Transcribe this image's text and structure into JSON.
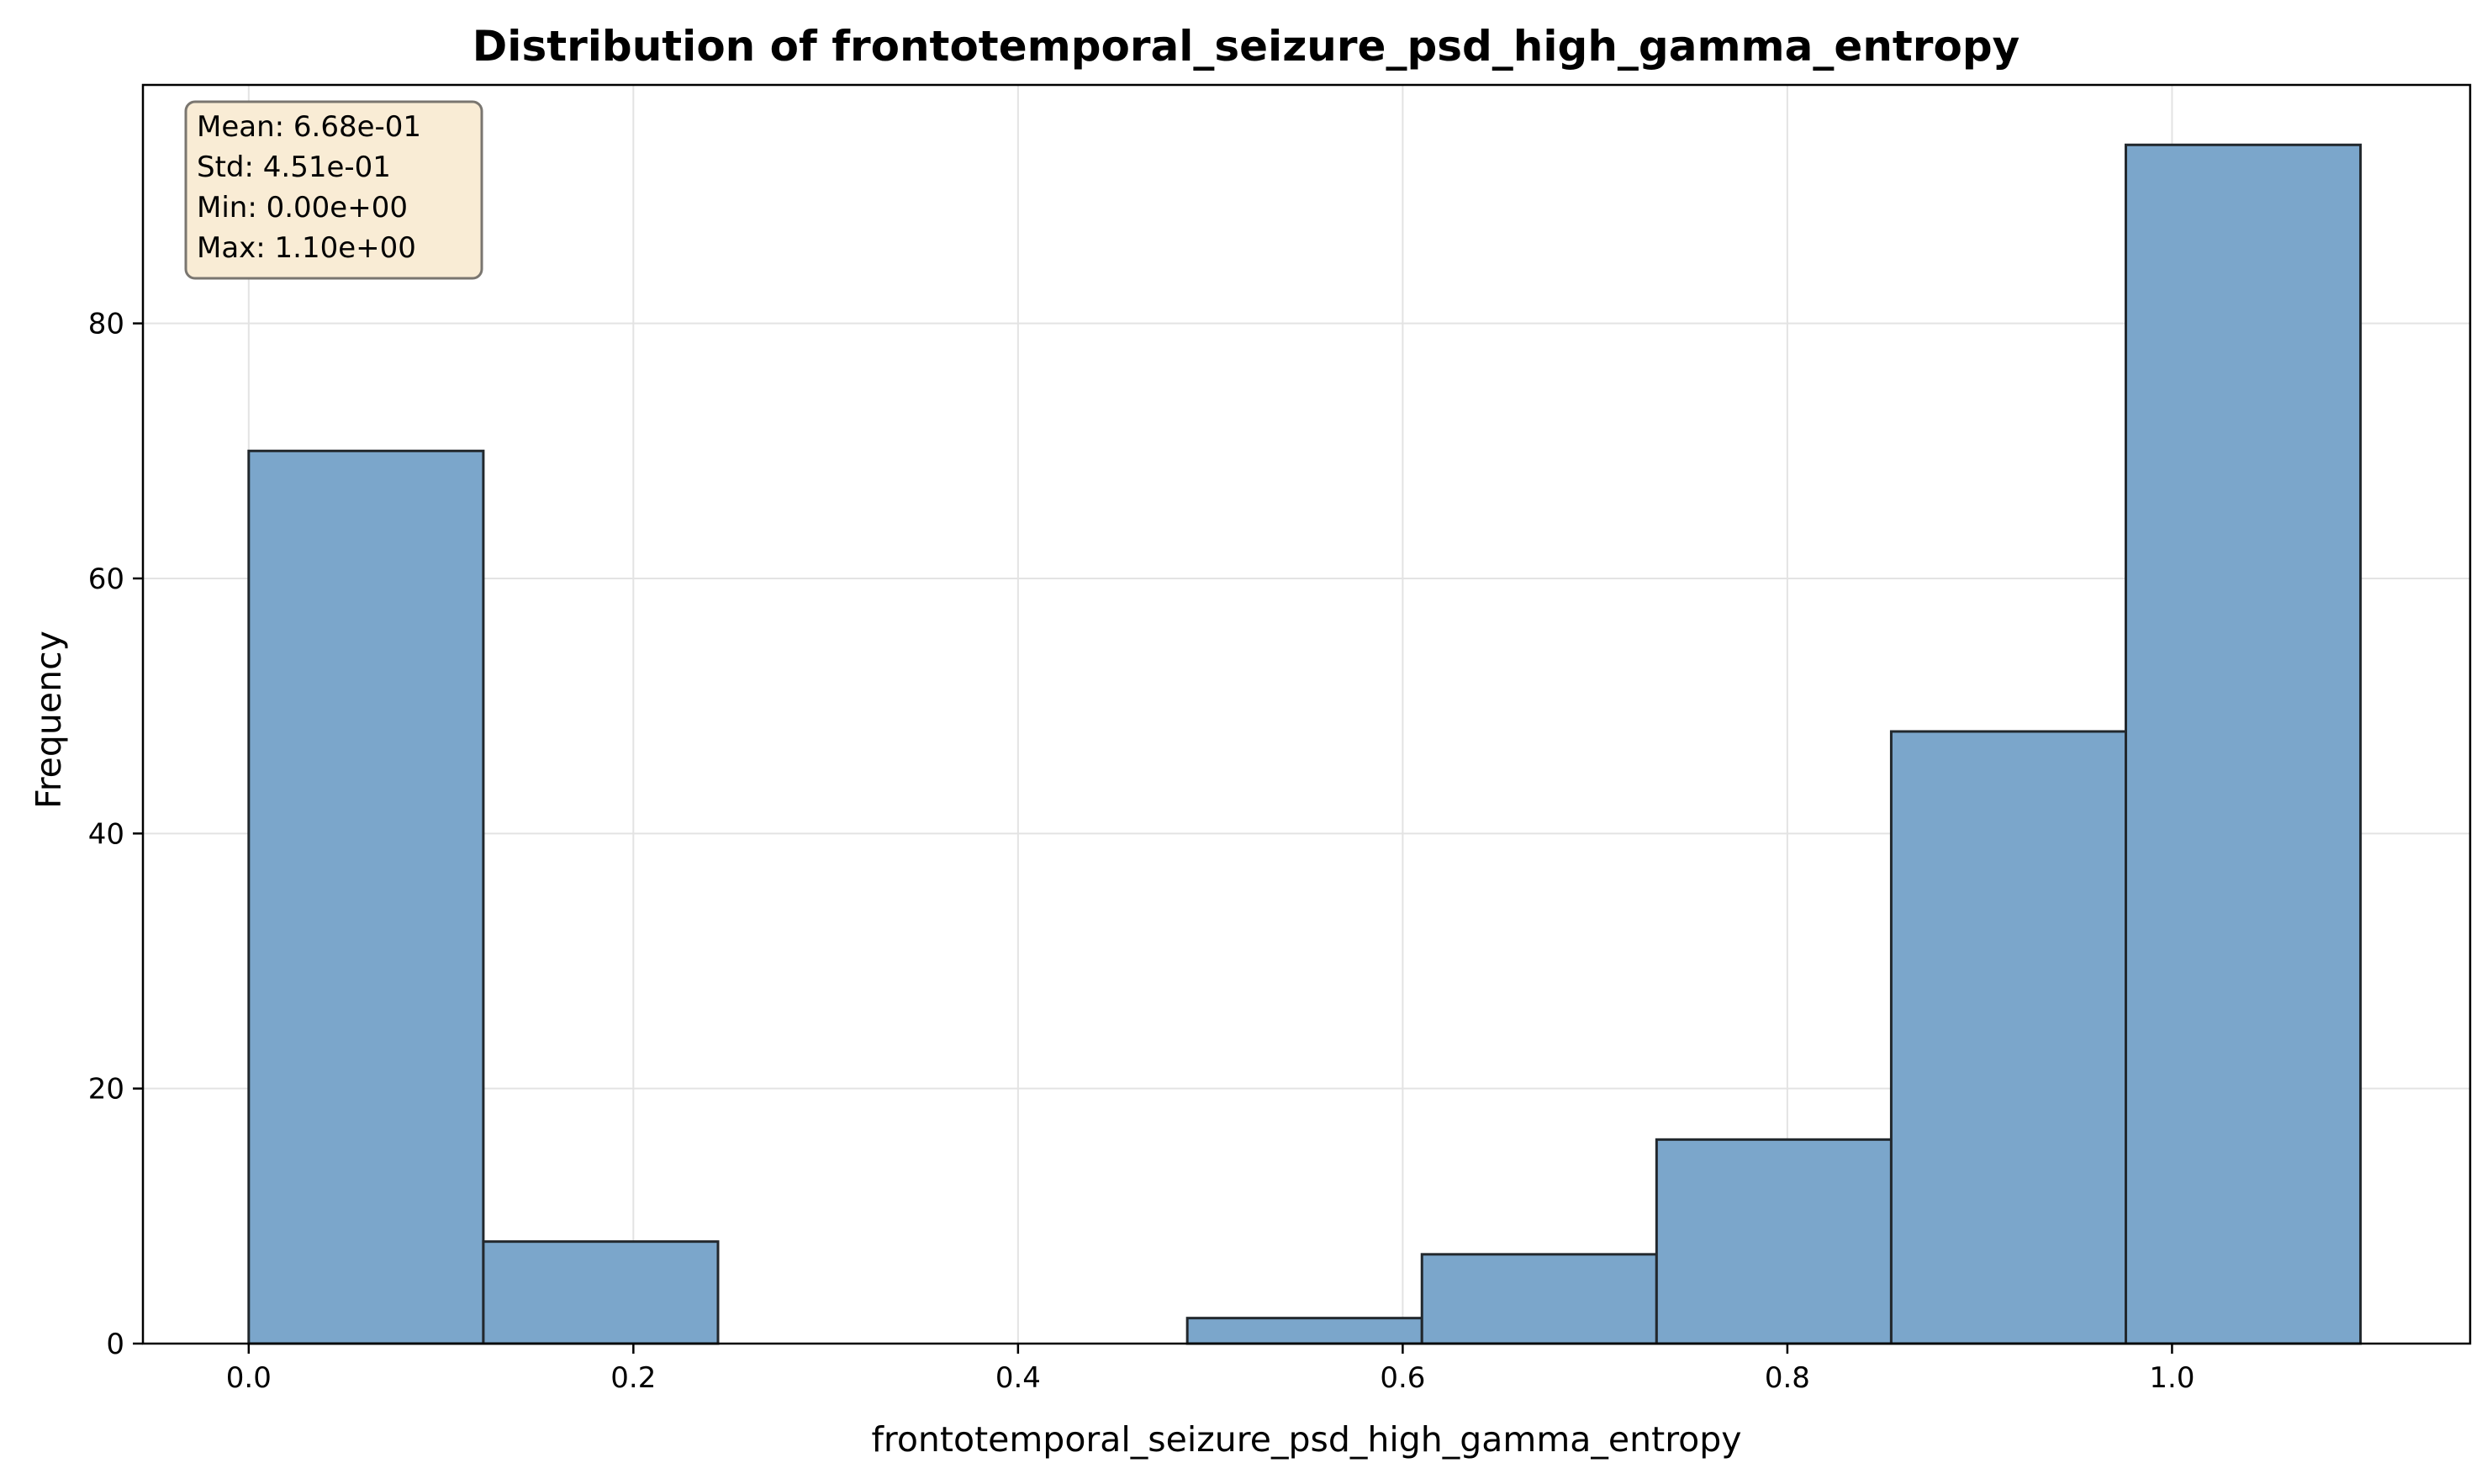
{
  "chart_data": {
    "type": "bar",
    "title": "Distribution of frontotemporal_seizure_psd_high_gamma_entropy",
    "xlabel": "frontotemporal_seizure_psd_high_gamma_entropy",
    "ylabel": "Frequency",
    "xlim": [
      -0.055,
      1.155
    ],
    "ylim": [
      0,
      98.7
    ],
    "xticks": [
      0.0,
      0.2,
      0.4,
      0.6,
      0.8,
      1.0
    ],
    "xtick_labels": [
      "0.0",
      "0.2",
      "0.4",
      "0.6",
      "0.8",
      "1.0"
    ],
    "yticks": [
      0,
      20,
      40,
      60,
      80
    ],
    "ytick_labels": [
      "0",
      "20",
      "40",
      "60",
      "80"
    ],
    "bin_edges": [
      0.0,
      0.122,
      0.244,
      0.366,
      0.488,
      0.61,
      0.732,
      0.854,
      0.976,
      1.098
    ],
    "counts": [
      70,
      8,
      0,
      0,
      2,
      7,
      16,
      48,
      94
    ],
    "grid": true,
    "colors": {
      "bar_fill": "#7ba6cb",
      "bar_edge": "#22282d",
      "stats_box_fill": "#f9ecd5",
      "stats_box_edge": "#7a7670",
      "grid": "#e3e3e3"
    },
    "stats": [
      "Mean: 6.68e-01",
      "Std: 4.51e-01",
      "Min: 0.00e+00",
      "Max: 1.10e+00"
    ],
    "stats_placement": "top-left"
  }
}
